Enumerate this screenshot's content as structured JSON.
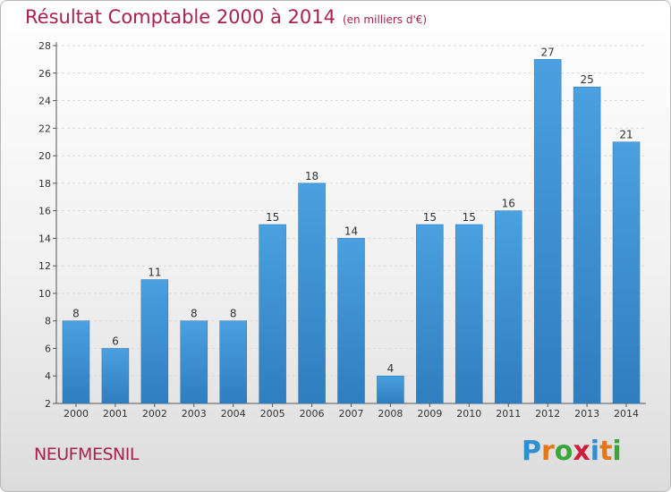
{
  "title": "Résultat Comptable 2000 à 2014",
  "subtitle": "(en milliers d'€)",
  "commune": "NEUFMESNIL",
  "logo": {
    "letters": [
      "P",
      "r",
      "o",
      "x",
      "i",
      "t",
      "i"
    ],
    "colors": [
      "#2f8fd0",
      "#e2781a",
      "#3aa63a",
      "#d21c3c",
      "#2f8fd0",
      "#e2781a",
      "#3aa63a"
    ]
  },
  "colors": {
    "bar": "#4aa0e0",
    "bar_dark": "#2f7ebf",
    "title": "#a8224f"
  },
  "chart_data": {
    "type": "bar",
    "categories": [
      "2000",
      "2001",
      "2002",
      "2003",
      "2004",
      "2005",
      "2006",
      "2007",
      "2008",
      "2009",
      "2010",
      "2011",
      "2012",
      "2013",
      "2014"
    ],
    "values": [
      8,
      6,
      11,
      8,
      8,
      15,
      18,
      14,
      4,
      15,
      15,
      16,
      27,
      25,
      21
    ],
    "ylim": [
      2,
      28
    ],
    "yticks": [
      2,
      4,
      6,
      8,
      10,
      12,
      14,
      16,
      18,
      20,
      22,
      24,
      26,
      28
    ],
    "grid": true
  }
}
